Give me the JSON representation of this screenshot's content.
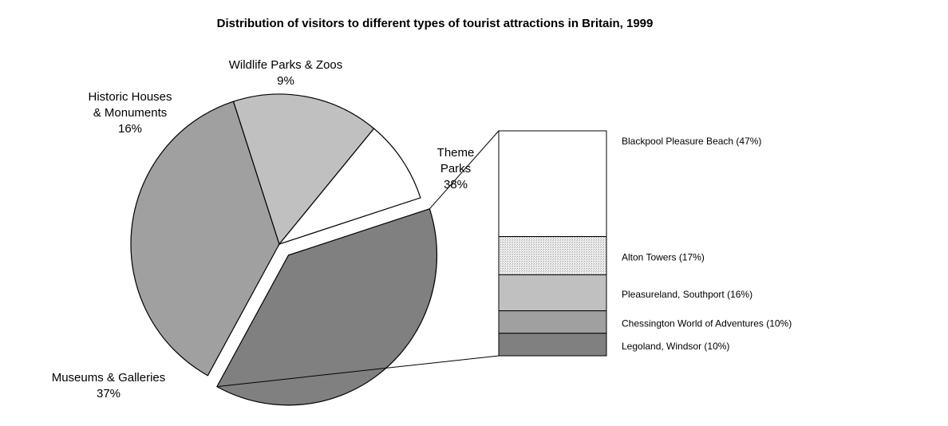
{
  "chart_data": [
    {
      "type": "pie",
      "title": "Distribution of visitors to different types of tourist attractions in Britain, 1999",
      "unit": "%",
      "slices": [
        {
          "name": "Theme Parks",
          "label_lines": [
            "Theme",
            "Parks"
          ],
          "value": 38,
          "value_label": "38%",
          "color": "#808080",
          "exploded": true
        },
        {
          "name": "Museums & Galleries",
          "label_lines": [
            "Museums & Galleries"
          ],
          "value": 37,
          "value_label": "37%",
          "color": "#a0a0a0",
          "exploded": false
        },
        {
          "name": "Historic Houses & Monuments",
          "label_lines": [
            "Historic Houses",
            "& Monuments"
          ],
          "value": 16,
          "value_label": "16%",
          "color": "#c0c0c0",
          "exploded": false
        },
        {
          "name": "Wildlife Parks & Zoos",
          "label_lines": [
            "Wildlife Parks & Zoos"
          ],
          "value": 9,
          "value_label": "9%",
          "color": "#ffffff",
          "exploded": false
        }
      ]
    },
    {
      "type": "stacked-bar",
      "parent_slice": "Theme Parks",
      "unit": "%",
      "segments": [
        {
          "label": "Blackpool Pleasure Beach (47%)",
          "value": 47,
          "color": "#ffffff",
          "pattern": "none"
        },
        {
          "label": "Alton Towers (17%)",
          "value": 17,
          "color": "#e6e6e6",
          "pattern": "dots"
        },
        {
          "label": "Pleasureland, Southport (16%)",
          "value": 16,
          "color": "#c0c0c0",
          "pattern": "none"
        },
        {
          "label": "Chessington World of Adventures (10%)",
          "value": 10,
          "color": "#a0a0a0",
          "pattern": "none"
        },
        {
          "label": "Legoland, Windsor  (10%)",
          "value": 10,
          "color": "#808080",
          "pattern": "none"
        }
      ]
    }
  ]
}
